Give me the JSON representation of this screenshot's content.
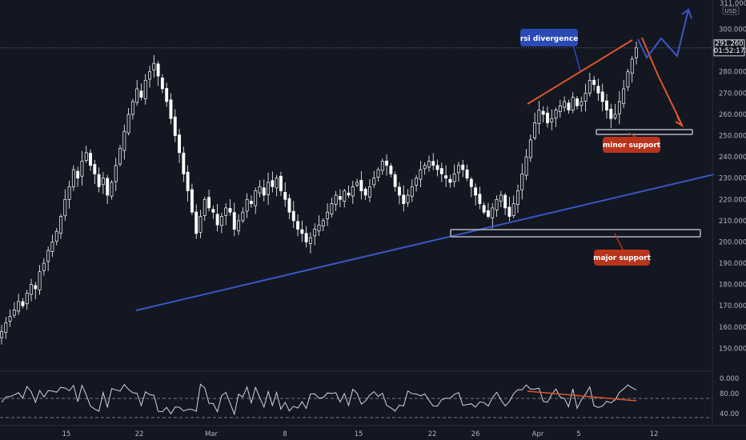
{
  "chart_data": {
    "type": "candlestick",
    "price_axis": {
      "ticks": [
        "300.000",
        "290.000",
        "280.000",
        "270.000",
        "260.000",
        "250.000",
        "240.000",
        "230.000",
        "220.000",
        "210.000",
        "200.000",
        "190.000",
        "180.000",
        "170.000",
        "160.000",
        "150.000"
      ],
      "tick_values": [
        300,
        290,
        280,
        270,
        260,
        250,
        240,
        230,
        220,
        210,
        200,
        190,
        180,
        170,
        160,
        150
      ],
      "range": [
        140,
        313
      ],
      "currency": "USD",
      "top_label": "311.000"
    },
    "last_price": {
      "value": "291.260",
      "countdown": "01:52:17",
      "numeric": 291.26
    },
    "time_axis": {
      "labels": [
        "15",
        "22",
        "Mar",
        "8",
        "15",
        "22",
        "26",
        "Apr",
        "5",
        "12"
      ]
    },
    "rsi": {
      "ticks": [
        "0.000",
        "80.00",
        "40.00"
      ],
      "levels": [
        70,
        30
      ]
    },
    "candles_close": [
      158,
      162,
      165,
      168,
      172,
      170,
      176,
      180,
      178,
      186,
      190,
      196,
      200,
      205,
      212,
      220,
      226,
      234,
      230,
      238,
      242,
      236,
      232,
      226,
      230,
      222,
      228,
      236,
      244,
      252,
      260,
      266,
      272,
      268,
      276,
      280,
      284,
      278,
      272,
      266,
      258,
      250,
      242,
      232,
      224,
      214,
      204,
      212,
      220,
      216,
      214,
      208,
      212,
      216,
      214,
      206,
      210,
      214,
      220,
      218,
      224,
      226,
      222,
      228,
      226,
      230,
      224,
      220,
      214,
      210,
      206,
      204,
      200,
      202,
      206,
      208,
      210,
      214,
      218,
      222,
      220,
      224,
      222,
      226,
      228,
      224,
      222,
      226,
      230,
      234,
      238,
      236,
      232,
      226,
      222,
      218,
      222,
      226,
      230,
      234,
      236,
      238,
      236,
      234,
      232,
      230,
      228,
      232,
      236,
      234,
      230,
      226,
      222,
      218,
      214,
      212,
      216,
      220,
      222,
      216,
      212,
      218,
      224,
      232,
      240,
      248,
      256,
      262,
      260,
      256,
      258,
      262,
      264,
      266,
      262,
      268,
      264,
      266,
      270,
      276,
      274,
      270,
      266,
      262,
      258,
      260,
      266,
      272,
      280,
      286,
      291.26
    ],
    "annotations": [
      {
        "text": "rsi divergence",
        "color": "#2a4ab6"
      },
      {
        "text": "minor support",
        "color": "#b8341b"
      },
      {
        "text": "major support",
        "color": "#b8341b"
      }
    ],
    "support_zones": [
      {
        "name": "minor support",
        "low": 249,
        "high": 251
      },
      {
        "name": "major support",
        "low": 203,
        "high": 206
      }
    ],
    "colors": {
      "background": "#131722",
      "candle": "#ffffff",
      "trendline": "#3a57c4",
      "divergence": "#e0552b",
      "projection_down": "#e0552b",
      "projection_up": "#3a57c4"
    }
  }
}
